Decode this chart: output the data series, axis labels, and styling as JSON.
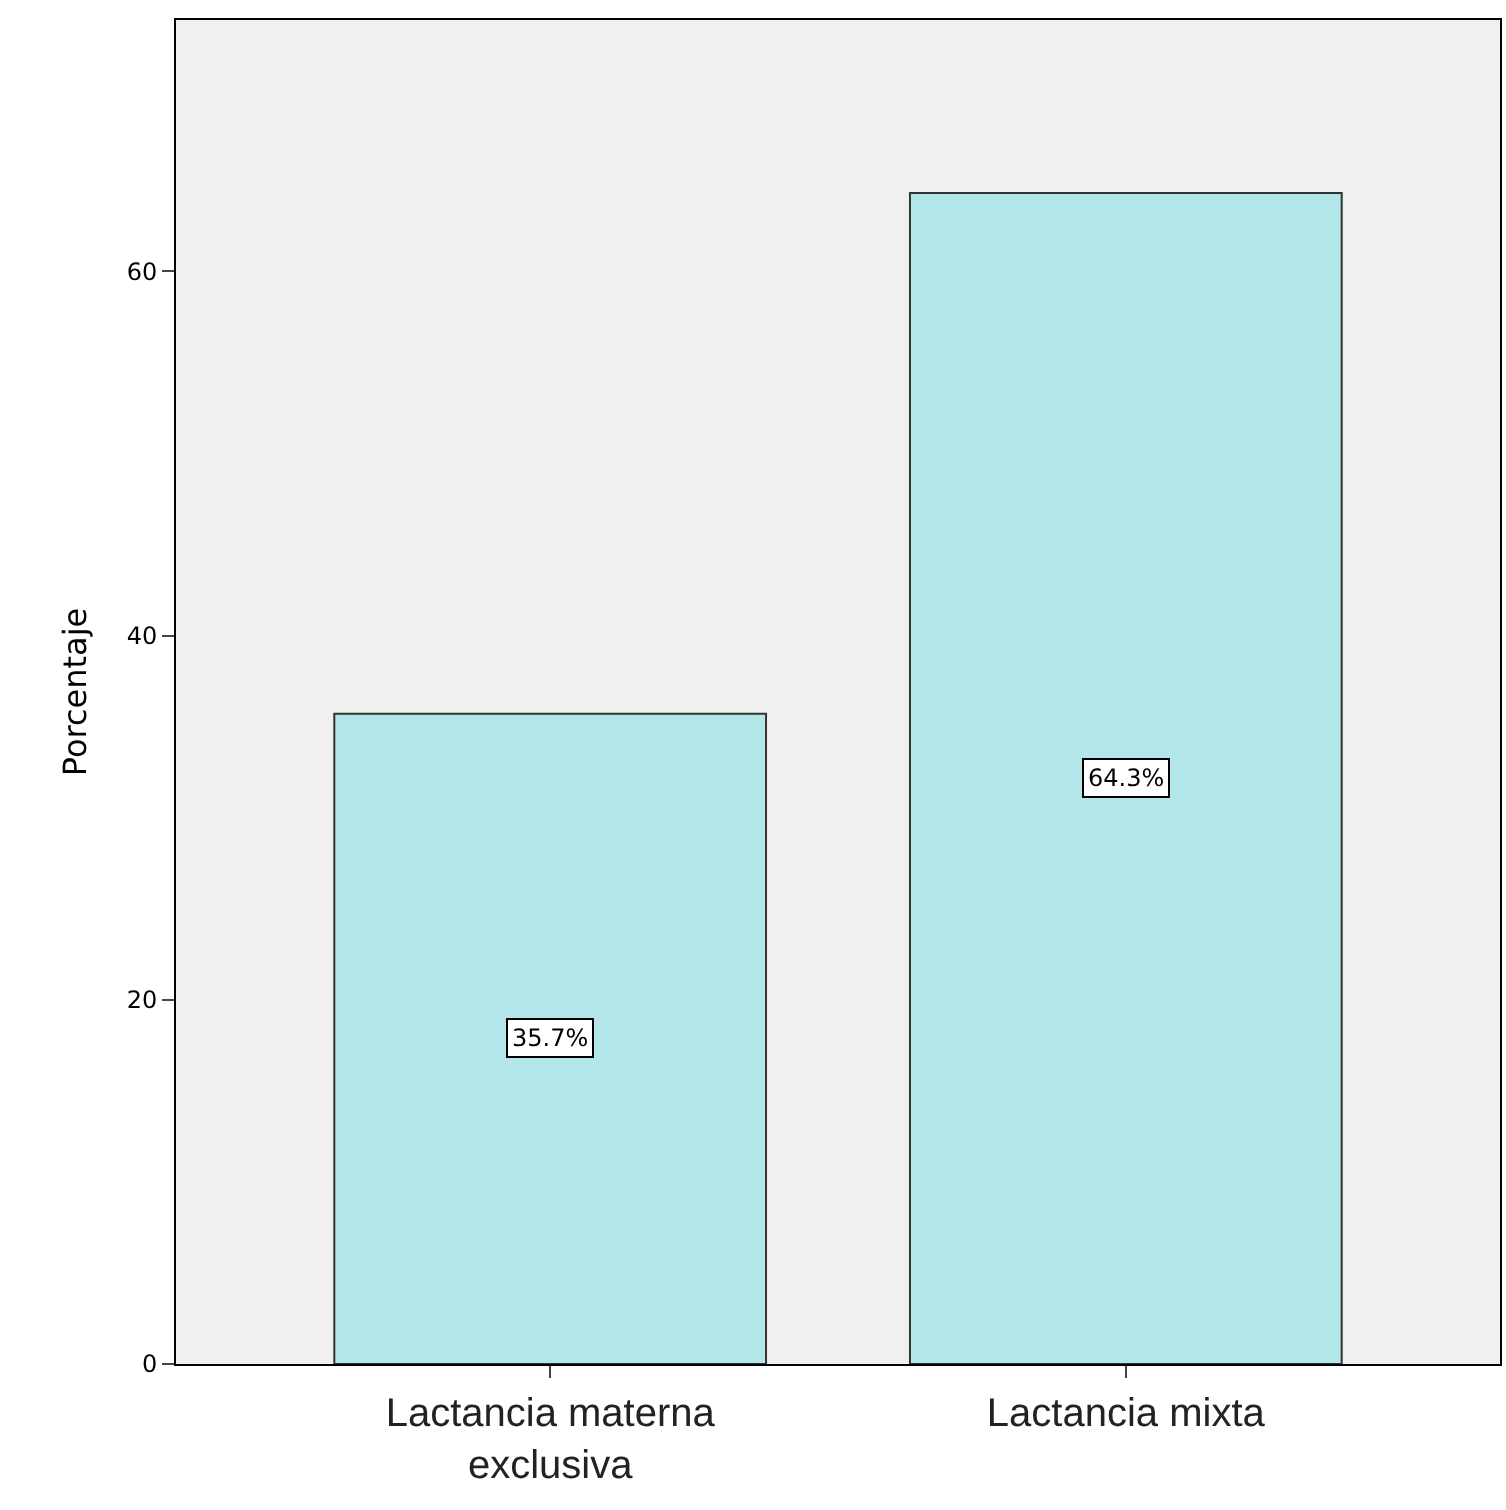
{
  "chart_data": {
    "type": "bar",
    "ylabel": "Porcentaje",
    "categories": [
      "Lactancia materna exclusiva",
      "Lactancia mixta"
    ],
    "values": [
      35.7,
      64.3
    ],
    "value_labels": [
      "35.7%",
      "64.3%"
    ],
    "color": "#b3e6e8",
    "ylim": [
      0,
      73.8
    ],
    "yticks": [
      0,
      20,
      40,
      60
    ],
    "grid": false,
    "legend": false
  }
}
